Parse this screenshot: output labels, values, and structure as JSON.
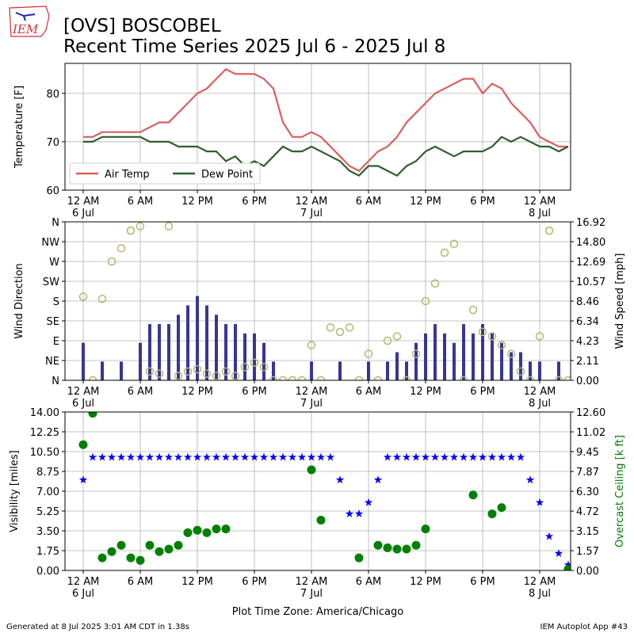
{
  "logo": "IEM",
  "title": "[OVS] BOSCOBEL",
  "subtitle": "Recent Time Series 2025 Jul 6 - 2025 Jul 8",
  "footer_left": "Generated at 8 Jul 2025 3:01 AM CDT in 1.38s",
  "footer_right": "IEM Autoplot App #43",
  "chart_data": [
    {
      "type": "line",
      "ylabel": "Temperature [F]",
      "xlim": [
        "2025-07-05T22:05",
        "2025-07-08T03:15"
      ],
      "xticks": [
        {
          "value": "2025-07-06T00:00",
          "label": "12 AM\n6 Jul"
        },
        {
          "value": "2025-07-06T06:00",
          "label": "6 AM"
        },
        {
          "value": "2025-07-06T12:00",
          "label": "12 PM"
        },
        {
          "value": "2025-07-06T18:00",
          "label": "6 PM"
        },
        {
          "value": "2025-07-07T00:00",
          "label": "12 AM\n7 Jul"
        },
        {
          "value": "2025-07-07T06:00",
          "label": "6 AM"
        },
        {
          "value": "2025-07-07T12:00",
          "label": "12 PM"
        },
        {
          "value": "2025-07-07T18:00",
          "label": "6 PM"
        },
        {
          "value": "2025-07-08T00:00",
          "label": "12 AM\n8 Jul"
        }
      ],
      "ylim": [
        60,
        86.2
      ],
      "yticks": [
        60,
        70,
        80
      ],
      "grid": true,
      "legend": "lower left",
      "x": [
        "2025-07-06T00:00",
        "2025-07-06T01:00",
        "2025-07-06T02:00",
        "2025-07-06T03:00",
        "2025-07-06T04:00",
        "2025-07-06T05:00",
        "2025-07-06T06:00",
        "2025-07-06T07:00",
        "2025-07-06T08:00",
        "2025-07-06T09:00",
        "2025-07-06T10:00",
        "2025-07-06T11:00",
        "2025-07-06T12:00",
        "2025-07-06T13:00",
        "2025-07-06T14:00",
        "2025-07-06T15:00",
        "2025-07-06T16:00",
        "2025-07-06T17:00",
        "2025-07-06T18:00",
        "2025-07-06T19:00",
        "2025-07-06T20:00",
        "2025-07-06T21:00",
        "2025-07-06T22:00",
        "2025-07-06T23:00",
        "2025-07-07T00:00",
        "2025-07-07T01:00",
        "2025-07-07T02:00",
        "2025-07-07T03:00",
        "2025-07-07T04:00",
        "2025-07-07T05:00",
        "2025-07-07T06:00",
        "2025-07-07T07:00",
        "2025-07-07T08:00",
        "2025-07-07T09:00",
        "2025-07-07T10:00",
        "2025-07-07T11:00",
        "2025-07-07T12:00",
        "2025-07-07T13:00",
        "2025-07-07T14:00",
        "2025-07-07T15:00",
        "2025-07-07T16:00",
        "2025-07-07T17:00",
        "2025-07-07T18:00",
        "2025-07-07T19:00",
        "2025-07-07T20:00",
        "2025-07-07T21:00",
        "2025-07-07T22:00",
        "2025-07-07T23:00",
        "2025-07-08T00:00",
        "2025-07-08T01:00",
        "2025-07-08T02:00",
        "2025-07-08T03:00"
      ],
      "series": [
        {
          "name": "Air Temp",
          "color": "#d95f5f",
          "values": [
            71,
            71,
            72,
            72,
            72,
            72,
            72,
            73,
            74,
            74,
            76,
            78,
            80,
            81,
            83,
            85,
            84,
            84,
            84,
            83,
            81,
            74,
            71,
            71,
            72,
            71,
            69,
            67,
            65,
            64,
            66,
            68,
            69,
            71,
            74,
            76,
            78,
            80,
            81,
            82,
            83,
            83,
            80,
            82,
            81,
            78,
            76,
            74,
            71,
            70,
            69,
            69
          ]
        },
        {
          "name": "Dew Point",
          "color": "#2e5e2e",
          "values": [
            70,
            70,
            71,
            71,
            71,
            71,
            71,
            70,
            70,
            70,
            69,
            69,
            69,
            68,
            68,
            66,
            67,
            65,
            66,
            65,
            67,
            69,
            68,
            68,
            69,
            68,
            67,
            66,
            64,
            63,
            65,
            65,
            64,
            63,
            65,
            66,
            68,
            69,
            68,
            67,
            68,
            68,
            68,
            69,
            71,
            70,
            71,
            70,
            69,
            69,
            68,
            69
          ]
        }
      ]
    },
    {
      "type": "combo",
      "ylabel": "Wind Direction",
      "y2label": "Wind Speed [mph]",
      "xlim": [
        "2025-07-05T22:05",
        "2025-07-08T03:15"
      ],
      "xticks": [
        {
          "value": "2025-07-06T00:00",
          "label": "12 AM\n6 Jul"
        },
        {
          "value": "2025-07-06T06:00",
          "label": "6 AM"
        },
        {
          "value": "2025-07-06T12:00",
          "label": "12 PM"
        },
        {
          "value": "2025-07-06T18:00",
          "label": "6 PM"
        },
        {
          "value": "2025-07-07T00:00",
          "label": "12 AM\n7 Jul"
        },
        {
          "value": "2025-07-07T06:00",
          "label": "6 AM"
        },
        {
          "value": "2025-07-07T12:00",
          "label": "12 PM"
        },
        {
          "value": "2025-07-07T18:00",
          "label": "6 PM"
        },
        {
          "value": "2025-07-08T00:00",
          "label": "12 AM\n8 Jul"
        }
      ],
      "ylim": [
        0,
        360
      ],
      "yticks": [
        {
          "value": 0,
          "label": "N"
        },
        {
          "value": 45,
          "label": "NE"
        },
        {
          "value": 90,
          "label": "E"
        },
        {
          "value": 135,
          "label": "SE"
        },
        {
          "value": 180,
          "label": "S"
        },
        {
          "value": 225,
          "label": "SW"
        },
        {
          "value": 270,
          "label": "W"
        },
        {
          "value": 315,
          "label": "NW"
        },
        {
          "value": 360,
          "label": "N"
        }
      ],
      "y2lim": [
        0,
        16.92
      ],
      "y2ticks": [
        {
          "value": 0,
          "label": "0.00"
        },
        2.11,
        4.23,
        6.34,
        8.46,
        10.57,
        12.69,
        {
          "value": 14.8,
          "label": "14.80"
        },
        16.92
      ],
      "grid": true,
      "x": [
        "2025-07-06T00:00",
        "2025-07-06T01:00",
        "2025-07-06T02:00",
        "2025-07-06T03:00",
        "2025-07-06T04:00",
        "2025-07-06T05:00",
        "2025-07-06T06:00",
        "2025-07-06T07:00",
        "2025-07-06T08:00",
        "2025-07-06T09:00",
        "2025-07-06T10:00",
        "2025-07-06T11:00",
        "2025-07-06T12:00",
        "2025-07-06T13:00",
        "2025-07-06T14:00",
        "2025-07-06T15:00",
        "2025-07-06T16:00",
        "2025-07-06T17:00",
        "2025-07-06T18:00",
        "2025-07-06T19:00",
        "2025-07-06T20:00",
        "2025-07-06T21:00",
        "2025-07-06T22:00",
        "2025-07-06T23:00",
        "2025-07-07T00:00",
        "2025-07-07T01:00",
        "2025-07-07T02:00",
        "2025-07-07T03:00",
        "2025-07-07T04:00",
        "2025-07-07T05:00",
        "2025-07-07T06:00",
        "2025-07-07T07:00",
        "2025-07-07T08:00",
        "2025-07-07T09:00",
        "2025-07-07T10:00",
        "2025-07-07T11:00",
        "2025-07-07T12:00",
        "2025-07-07T13:00",
        "2025-07-07T14:00",
        "2025-07-07T15:00",
        "2025-07-07T16:00",
        "2025-07-07T17:00",
        "2025-07-07T18:00",
        "2025-07-07T19:00",
        "2025-07-07T20:00",
        "2025-07-07T21:00",
        "2025-07-07T22:00",
        "2025-07-07T23:00",
        "2025-07-08T00:00",
        "2025-07-08T01:00",
        "2025-07-08T02:00",
        "2025-07-08T03:00"
      ],
      "series": [
        {
          "type": "bar",
          "axis": "y2",
          "color": "#363698",
          "values": [
            4,
            0,
            2,
            0,
            2,
            0,
            4,
            6,
            6,
            6,
            7,
            8,
            9,
            8,
            7,
            6,
            6,
            5,
            5,
            4,
            2,
            0,
            0,
            0,
            2,
            0,
            0,
            2,
            0,
            0,
            2,
            0,
            2,
            3,
            2,
            4,
            5,
            6,
            5,
            4,
            6,
            5,
            6,
            5,
            4,
            3,
            3,
            2,
            2,
            0,
            2,
            0
          ]
        },
        {
          "type": "scatter",
          "marker": "circle",
          "color": "#b6b66e",
          "values": [
            190,
            0,
            185,
            270,
            300,
            340,
            350,
            20,
            15,
            350,
            10,
            20,
            25,
            15,
            10,
            20,
            10,
            30,
            40,
            30,
            0,
            0,
            0,
            0,
            80,
            0,
            120,
            110,
            120,
            0,
            60,
            0,
            90,
            100,
            0,
            60,
            180,
            220,
            290,
            310,
            0,
            160,
            110,
            100,
            80,
            60,
            20,
            0,
            100,
            340,
            0,
            0
          ]
        }
      ]
    },
    {
      "type": "combo",
      "ylabel": "Visibility [miles]",
      "y2label": "Overcast Ceiling [k ft]",
      "y2color": "#008000",
      "xlabel": "Plot Time Zone: America/Chicago",
      "xlim": [
        "2025-07-05T22:05",
        "2025-07-08T03:15"
      ],
      "xticks": [
        {
          "value": "2025-07-06T00:00",
          "label": "12 AM\n6 Jul"
        },
        {
          "value": "2025-07-06T06:00",
          "label": "6 AM"
        },
        {
          "value": "2025-07-06T12:00",
          "label": "12 PM"
        },
        {
          "value": "2025-07-06T18:00",
          "label": "6 PM"
        },
        {
          "value": "2025-07-07T00:00",
          "label": "12 AM\n7 Jul"
        },
        {
          "value": "2025-07-07T06:00",
          "label": "6 AM"
        },
        {
          "value": "2025-07-07T12:00",
          "label": "12 PM"
        },
        {
          "value": "2025-07-07T18:00",
          "label": "6 PM"
        },
        {
          "value": "2025-07-08T00:00",
          "label": "12 AM\n8 Jul"
        }
      ],
      "ylim": [
        0,
        14
      ],
      "yticks": [
        {
          "value": 0,
          "label": "0.00"
        },
        1.75,
        {
          "value": 3.5,
          "label": "3.50"
        },
        5.25,
        {
          "value": 7,
          "label": "7.00"
        },
        8.75,
        {
          "value": 10.5,
          "label": "10.50"
        },
        12.25,
        {
          "value": 14,
          "label": "14.00"
        }
      ],
      "y2lim": [
        0,
        12.6
      ],
      "y2ticks": [
        {
          "value": 0,
          "label": "0.00"
        },
        1.57,
        3.15,
        4.72,
        {
          "value": 6.3,
          "label": "6.30"
        },
        7.87,
        9.45,
        11.02,
        {
          "value": 12.6,
          "label": "12.60"
        }
      ],
      "grid": true,
      "x": [
        "2025-07-06T00:00",
        "2025-07-06T01:00",
        "2025-07-06T02:00",
        "2025-07-06T03:00",
        "2025-07-06T04:00",
        "2025-07-06T05:00",
        "2025-07-06T06:00",
        "2025-07-06T07:00",
        "2025-07-06T08:00",
        "2025-07-06T09:00",
        "2025-07-06T10:00",
        "2025-07-06T11:00",
        "2025-07-06T12:00",
        "2025-07-06T13:00",
        "2025-07-06T14:00",
        "2025-07-06T15:00",
        "2025-07-06T16:00",
        "2025-07-06T17:00",
        "2025-07-06T18:00",
        "2025-07-06T19:00",
        "2025-07-06T20:00",
        "2025-07-06T21:00",
        "2025-07-06T22:00",
        "2025-07-06T23:00",
        "2025-07-07T00:00",
        "2025-07-07T01:00",
        "2025-07-07T02:00",
        "2025-07-07T03:00",
        "2025-07-07T04:00",
        "2025-07-07T05:00",
        "2025-07-07T06:00",
        "2025-07-07T07:00",
        "2025-07-07T08:00",
        "2025-07-07T09:00",
        "2025-07-07T10:00",
        "2025-07-07T11:00",
        "2025-07-07T12:00",
        "2025-07-07T13:00",
        "2025-07-07T14:00",
        "2025-07-07T15:00",
        "2025-07-07T16:00",
        "2025-07-07T17:00",
        "2025-07-07T18:00",
        "2025-07-07T19:00",
        "2025-07-07T20:00",
        "2025-07-07T21:00",
        "2025-07-07T22:00",
        "2025-07-07T23:00",
        "2025-07-08T00:00",
        "2025-07-08T01:00",
        "2025-07-08T02:00",
        "2025-07-08T03:00"
      ],
      "series": [
        {
          "type": "scatter",
          "marker": "star",
          "color": "#0000ff",
          "values": [
            8,
            10,
            10,
            10,
            10,
            10,
            10,
            10,
            10,
            10,
            10,
            10,
            10,
            10,
            10,
            10,
            10,
            10,
            10,
            10,
            10,
            10,
            10,
            10,
            10,
            10,
            10,
            8,
            5,
            5,
            6,
            8,
            10,
            10,
            10,
            10,
            10,
            10,
            10,
            10,
            10,
            10,
            10,
            10,
            10,
            10,
            10,
            8,
            6,
            3,
            1.5,
            0.5
          ]
        },
        {
          "type": "scatter",
          "marker": "circle",
          "axis": "y2",
          "color": "#008000",
          "values": [
            10,
            12.5,
            1,
            1.5,
            2,
            1,
            0.8,
            2,
            1.5,
            1.7,
            2,
            3,
            3.2,
            3,
            3.3,
            3.3,
            null,
            null,
            null,
            null,
            null,
            null,
            null,
            null,
            8,
            4,
            null,
            null,
            null,
            1,
            null,
            2,
            1.8,
            1.7,
            1.7,
            2,
            3.3,
            null,
            null,
            null,
            null,
            6,
            null,
            4.5,
            5,
            null,
            null,
            null,
            null,
            null,
            null,
            0.1
          ]
        }
      ]
    }
  ]
}
